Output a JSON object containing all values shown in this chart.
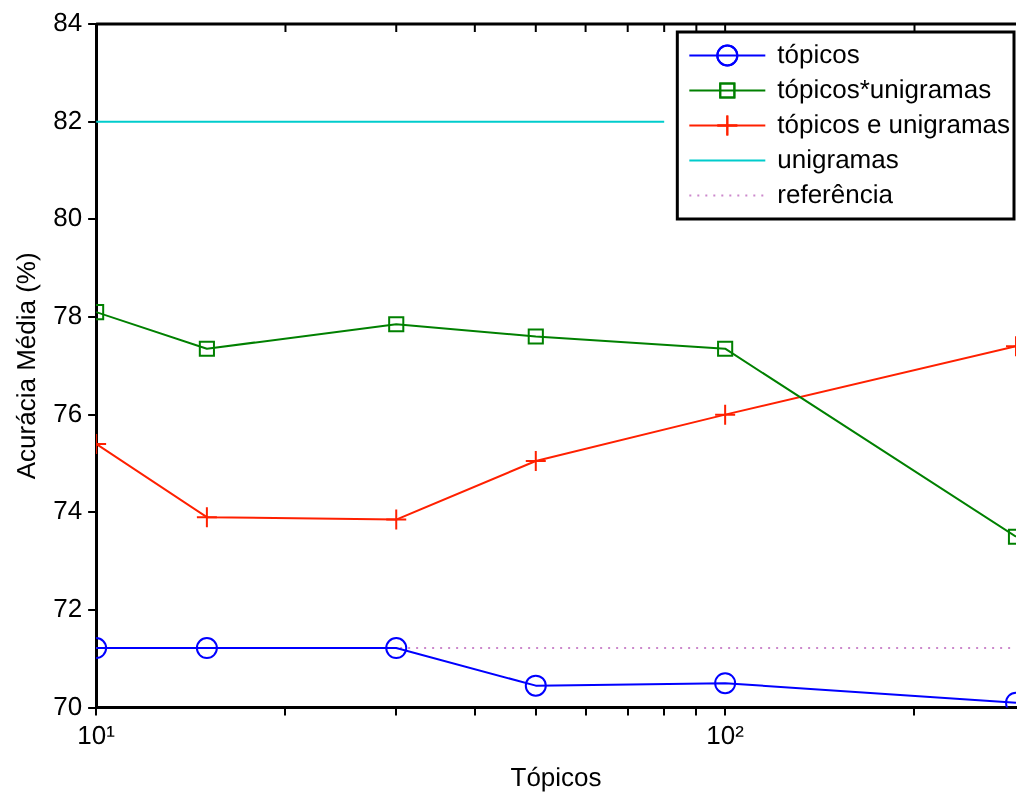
{
  "chart_data": {
    "type": "line",
    "xlabel": "Tópicos",
    "ylabel": "Acurácia Média (%)",
    "log": "x",
    "grid": false,
    "legend": "top right",
    "x": [
      10,
      15,
      30,
      50,
      100,
      290
    ],
    "xlim": [
      10,
      290
    ],
    "xticks": [
      {
        "value": 10,
        "label": "10¹"
      },
      {
        "value": 20,
        "label": null
      },
      {
        "value": 30,
        "label": null
      },
      {
        "value": 40,
        "label": null
      },
      {
        "value": 50,
        "label": null
      },
      {
        "value": 60,
        "label": null
      },
      {
        "value": 70,
        "label": null
      },
      {
        "value": 80,
        "label": null
      },
      {
        "value": 90,
        "label": null
      },
      {
        "value": 100,
        "label": "10²"
      },
      {
        "value": 200,
        "label": null
      }
    ],
    "ylim": [
      70,
      84
    ],
    "yticks": [
      70,
      72,
      74,
      76,
      78,
      80,
      82,
      84
    ],
    "series": [
      {
        "name": "tópicos",
        "color": "#0000ff",
        "marker": "circle",
        "line_style": "solid",
        "values": [
          71.22,
          71.22,
          71.22,
          70.45,
          70.5,
          70.1
        ]
      },
      {
        "name": "tópicos*unigramas",
        "color": "#008000",
        "marker": "square",
        "line_style": "solid",
        "values": [
          78.1,
          77.35,
          77.85,
          77.6,
          77.35,
          73.5
        ]
      },
      {
        "name": "tópicos e unigramas",
        "color": "#ff2000",
        "marker": "cross",
        "line_style": "solid",
        "values": [
          75.4,
          73.9,
          73.85,
          75.05,
          76.0,
          77.4
        ]
      },
      {
        "name": "unigramas",
        "color": "#00cccc",
        "marker": "none",
        "line_style": "solid",
        "x": [
          10,
          80
        ],
        "values": [
          82,
          82
        ]
      },
      {
        "name": "referência",
        "color": "#cc88cc",
        "marker": "none",
        "line_style": "dotted",
        "values": [
          71.22,
          71.22,
          71.22,
          71.22,
          71.22,
          71.22
        ]
      }
    ]
  }
}
